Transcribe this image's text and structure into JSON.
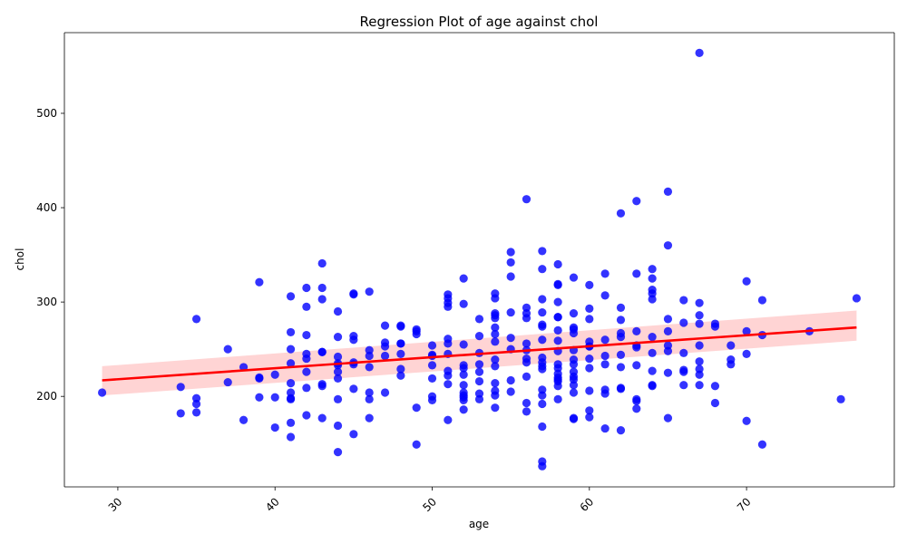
{
  "chart_data": {
    "type": "scatter",
    "title": "Regression Plot of age against chol",
    "xlabel": "age",
    "ylabel": "chol",
    "xlim": [
      26.6,
      79.4
    ],
    "ylim": [
      104.1,
      585.5
    ],
    "xticks": [
      30,
      40,
      50,
      60,
      70
    ],
    "yticks": [
      200,
      300,
      400,
      500
    ],
    "grid": false,
    "colors": {
      "points": "#0000ff",
      "line": "#ff0000",
      "band": "#ffcccc"
    },
    "regression": {
      "x": [
        29,
        77
      ],
      "y": [
        217,
        273
      ],
      "ci_low": [
        201,
        259
      ],
      "ci_high": [
        232,
        291
      ]
    },
    "points": [
      [
        29,
        204
      ],
      [
        34,
        182
      ],
      [
        34,
        210
      ],
      [
        35,
        183
      ],
      [
        35,
        192
      ],
      [
        35,
        198
      ],
      [
        35,
        282
      ],
      [
        37,
        215
      ],
      [
        37,
        250
      ],
      [
        38,
        175
      ],
      [
        38,
        231
      ],
      [
        39,
        199
      ],
      [
        39,
        219
      ],
      [
        39,
        220
      ],
      [
        39,
        321
      ],
      [
        40,
        167
      ],
      [
        40,
        199
      ],
      [
        40,
        223
      ],
      [
        41,
        157
      ],
      [
        41,
        172
      ],
      [
        41,
        197
      ],
      [
        41,
        198
      ],
      [
        41,
        204
      ],
      [
        41,
        214
      ],
      [
        41,
        235
      ],
      [
        41,
        250
      ],
      [
        41,
        268
      ],
      [
        41,
        306
      ],
      [
        42,
        180
      ],
      [
        42,
        209
      ],
      [
        42,
        226
      ],
      [
        42,
        240
      ],
      [
        42,
        245
      ],
      [
        42,
        265
      ],
      [
        42,
        295
      ],
      [
        42,
        315
      ],
      [
        43,
        177
      ],
      [
        43,
        211
      ],
      [
        43,
        213
      ],
      [
        43,
        247
      ],
      [
        43,
        247
      ],
      [
        43,
        303
      ],
      [
        43,
        315
      ],
      [
        43,
        341
      ],
      [
        44,
        141
      ],
      [
        44,
        169
      ],
      [
        44,
        197
      ],
      [
        44,
        219
      ],
      [
        44,
        226
      ],
      [
        44,
        233
      ],
      [
        44,
        235
      ],
      [
        44,
        242
      ],
      [
        44,
        263
      ],
      [
        44,
        290
      ],
      [
        45,
        160
      ],
      [
        45,
        208
      ],
      [
        45,
        234
      ],
      [
        45,
        236
      ],
      [
        45,
        260
      ],
      [
        45,
        264
      ],
      [
        45,
        308
      ],
      [
        45,
        309
      ],
      [
        46,
        177
      ],
      [
        46,
        197
      ],
      [
        46,
        204
      ],
      [
        46,
        231
      ],
      [
        46,
        243
      ],
      [
        46,
        249
      ],
      [
        46,
        311
      ],
      [
        47,
        204
      ],
      [
        47,
        243
      ],
      [
        47,
        253
      ],
      [
        47,
        257
      ],
      [
        47,
        275
      ],
      [
        48,
        222
      ],
      [
        48,
        229
      ],
      [
        48,
        245
      ],
      [
        48,
        256
      ],
      [
        48,
        256
      ],
      [
        48,
        274
      ],
      [
        48,
        275
      ],
      [
        49,
        149
      ],
      [
        49,
        188
      ],
      [
        49,
        266
      ],
      [
        49,
        269
      ],
      [
        49,
        271
      ],
      [
        50,
        196
      ],
      [
        50,
        200
      ],
      [
        50,
        219
      ],
      [
        50,
        233
      ],
      [
        50,
        243
      ],
      [
        50,
        244
      ],
      [
        50,
        254
      ],
      [
        51,
        175
      ],
      [
        51,
        213
      ],
      [
        51,
        222
      ],
      [
        51,
        227
      ],
      [
        51,
        245
      ],
      [
        51,
        256
      ],
      [
        51,
        261
      ],
      [
        51,
        295
      ],
      [
        51,
        299
      ],
      [
        51,
        304
      ],
      [
        51,
        308
      ],
      [
        52,
        186
      ],
      [
        52,
        196
      ],
      [
        52,
        199
      ],
      [
        52,
        201
      ],
      [
        52,
        204
      ],
      [
        52,
        212
      ],
      [
        52,
        223
      ],
      [
        52,
        230
      ],
      [
        52,
        233
      ],
      [
        52,
        255
      ],
      [
        52,
        298
      ],
      [
        52,
        325
      ],
      [
        53,
        197
      ],
      [
        53,
        203
      ],
      [
        53,
        216
      ],
      [
        53,
        226
      ],
      [
        53,
        234
      ],
      [
        53,
        246
      ],
      [
        53,
        264
      ],
      [
        53,
        282
      ],
      [
        54,
        188
      ],
      [
        54,
        201
      ],
      [
        54,
        206
      ],
      [
        54,
        214
      ],
      [
        54,
        232
      ],
      [
        54,
        239
      ],
      [
        54,
        258
      ],
      [
        54,
        266
      ],
      [
        54,
        273
      ],
      [
        54,
        283
      ],
      [
        54,
        286
      ],
      [
        54,
        288
      ],
      [
        54,
        304
      ],
      [
        54,
        309
      ],
      [
        55,
        205
      ],
      [
        55,
        217
      ],
      [
        55,
        250
      ],
      [
        55,
        262
      ],
      [
        55,
        289
      ],
      [
        55,
        327
      ],
      [
        55,
        342
      ],
      [
        55,
        353
      ],
      [
        56,
        184
      ],
      [
        56,
        193
      ],
      [
        56,
        221
      ],
      [
        56,
        236
      ],
      [
        56,
        240
      ],
      [
        56,
        249
      ],
      [
        56,
        256
      ],
      [
        56,
        283
      ],
      [
        56,
        288
      ],
      [
        56,
        294
      ],
      [
        56,
        409
      ],
      [
        57,
        126
      ],
      [
        57,
        131
      ],
      [
        57,
        168
      ],
      [
        57,
        192
      ],
      [
        57,
        201
      ],
      [
        57,
        207
      ],
      [
        57,
        229
      ],
      [
        57,
        232
      ],
      [
        57,
        236
      ],
      [
        57,
        241
      ],
      [
        57,
        260
      ],
      [
        57,
        274
      ],
      [
        57,
        276
      ],
      [
        57,
        289
      ],
      [
        57,
        303
      ],
      [
        57,
        335
      ],
      [
        57,
        354
      ],
      [
        58,
        197
      ],
      [
        58,
        211
      ],
      [
        58,
        216
      ],
      [
        58,
        218
      ],
      [
        58,
        220
      ],
      [
        58,
        224
      ],
      [
        58,
        230
      ],
      [
        58,
        234
      ],
      [
        58,
        248
      ],
      [
        58,
        259
      ],
      [
        58,
        270
      ],
      [
        58,
        284
      ],
      [
        58,
        284
      ],
      [
        58,
        300
      ],
      [
        58,
        318
      ],
      [
        58,
        319
      ],
      [
        58,
        340
      ],
      [
        59,
        176
      ],
      [
        59,
        177
      ],
      [
        59,
        204
      ],
      [
        59,
        212
      ],
      [
        59,
        218
      ],
      [
        59,
        221
      ],
      [
        59,
        226
      ],
      [
        59,
        234
      ],
      [
        59,
        239
      ],
      [
        59,
        249
      ],
      [
        59,
        267
      ],
      [
        59,
        271
      ],
      [
        59,
        273
      ],
      [
        59,
        288
      ],
      [
        59,
        326
      ],
      [
        60,
        178
      ],
      [
        60,
        185
      ],
      [
        60,
        206
      ],
      [
        60,
        230
      ],
      [
        60,
        240
      ],
      [
        60,
        253
      ],
      [
        60,
        253
      ],
      [
        60,
        258
      ],
      [
        60,
        282
      ],
      [
        60,
        293
      ],
      [
        60,
        318
      ],
      [
        61,
        166
      ],
      [
        61,
        203
      ],
      [
        61,
        207
      ],
      [
        61,
        234
      ],
      [
        61,
        243
      ],
      [
        61,
        260
      ],
      [
        61,
        307
      ],
      [
        61,
        330
      ],
      [
        62,
        164
      ],
      [
        62,
        208
      ],
      [
        62,
        209
      ],
      [
        62,
        231
      ],
      [
        62,
        244
      ],
      [
        62,
        263
      ],
      [
        62,
        267
      ],
      [
        62,
        281
      ],
      [
        62,
        294
      ],
      [
        62,
        394
      ],
      [
        63,
        187
      ],
      [
        63,
        195
      ],
      [
        63,
        197
      ],
      [
        63,
        233
      ],
      [
        63,
        252
      ],
      [
        63,
        254
      ],
      [
        63,
        269
      ],
      [
        63,
        330
      ],
      [
        63,
        407
      ],
      [
        64,
        211
      ],
      [
        64,
        212
      ],
      [
        64,
        227
      ],
      [
        64,
        246
      ],
      [
        64,
        263
      ],
      [
        64,
        303
      ],
      [
        64,
        309
      ],
      [
        64,
        313
      ],
      [
        64,
        325
      ],
      [
        64,
        335
      ],
      [
        65,
        177
      ],
      [
        65,
        225
      ],
      [
        65,
        248
      ],
      [
        65,
        254
      ],
      [
        65,
        269
      ],
      [
        65,
        282
      ],
      [
        65,
        360
      ],
      [
        65,
        417
      ],
      [
        66,
        212
      ],
      [
        66,
        226
      ],
      [
        66,
        228
      ],
      [
        66,
        246
      ],
      [
        66,
        278
      ],
      [
        66,
        302
      ],
      [
        67,
        212
      ],
      [
        67,
        223
      ],
      [
        67,
        229
      ],
      [
        67,
        237
      ],
      [
        67,
        254
      ],
      [
        67,
        277
      ],
      [
        67,
        286
      ],
      [
        67,
        299
      ],
      [
        67,
        564
      ],
      [
        68,
        193
      ],
      [
        68,
        211
      ],
      [
        68,
        274
      ],
      [
        68,
        277
      ],
      [
        69,
        234
      ],
      [
        69,
        239
      ],
      [
        69,
        254
      ],
      [
        70,
        174
      ],
      [
        70,
        245
      ],
      [
        70,
        269
      ],
      [
        70,
        322
      ],
      [
        71,
        149
      ],
      [
        71,
        265
      ],
      [
        71,
        302
      ],
      [
        74,
        269
      ],
      [
        76,
        197
      ],
      [
        77,
        304
      ]
    ]
  }
}
